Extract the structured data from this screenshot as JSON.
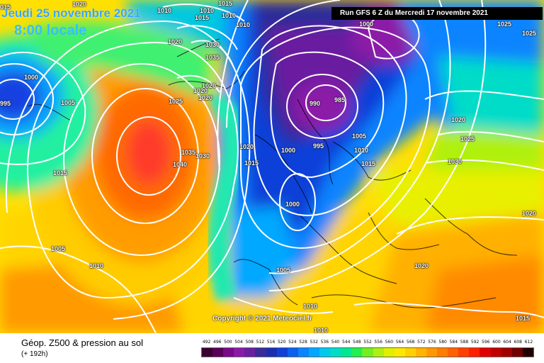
{
  "header": {
    "date": "Jeudi 25 novembre 2021",
    "time": "8:00 locale",
    "run": "Run GFS 6 Z du Mercredi 17 novembre 2021"
  },
  "footer": {
    "title": "Géop. Z500 & pression au sol",
    "subtitle": "(+ 192h)"
  },
  "copyright": "Copyright © 2021 Meteociel.fr",
  "isobar_labels": [
    "015",
    "1020",
    "1010",
    "1015",
    "1015",
    "1010",
    "1010",
    "1010",
    "1000",
    "1025",
    "1020",
    "1030",
    "1025",
    "1000",
    "1035",
    "995",
    "1005",
    "1020",
    "1020",
    "1025",
    "1020",
    "985",
    "990",
    "1020",
    "1000",
    "1005",
    "1010",
    "1015",
    "1020",
    "1025",
    "995",
    "1035",
    "1030",
    "1040",
    "1015",
    "1015",
    "1030",
    "1020",
    "1005",
    "1010",
    "1005",
    "1020",
    "1010",
    "1015",
    "1010",
    "1000"
  ],
  "scale": {
    "labels": [
      "492",
      "496",
      "500",
      "504",
      "508",
      "512",
      "516",
      "520",
      "524",
      "528",
      "532",
      "536",
      "540",
      "544",
      "548",
      "552",
      "556",
      "560",
      "564",
      "568",
      "572",
      "576",
      "580",
      "584",
      "588",
      "592",
      "596",
      "600",
      "604",
      "608",
      "612"
    ],
    "colors": [
      "#3a0030",
      "#58005a",
      "#7a0a8a",
      "#8c1aa8",
      "#6a1fa0",
      "#3a2a9a",
      "#1a2eb0",
      "#1040d8",
      "#0a60f0",
      "#0a84ff",
      "#00a8ff",
      "#00c8f0",
      "#00dcc8",
      "#00e890",
      "#20f050",
      "#70f020",
      "#b0f010",
      "#e0f000",
      "#ffe800",
      "#ffd000",
      "#ffb400",
      "#ff9800",
      "#ff7c00",
      "#ff6000",
      "#ff4000",
      "#ff2000",
      "#e00000",
      "#c00000",
      "#a00000",
      "#700000",
      "#200000"
    ]
  },
  "colors": {
    "header_date": "#37a6ff",
    "header_time": "#37c0ff"
  }
}
